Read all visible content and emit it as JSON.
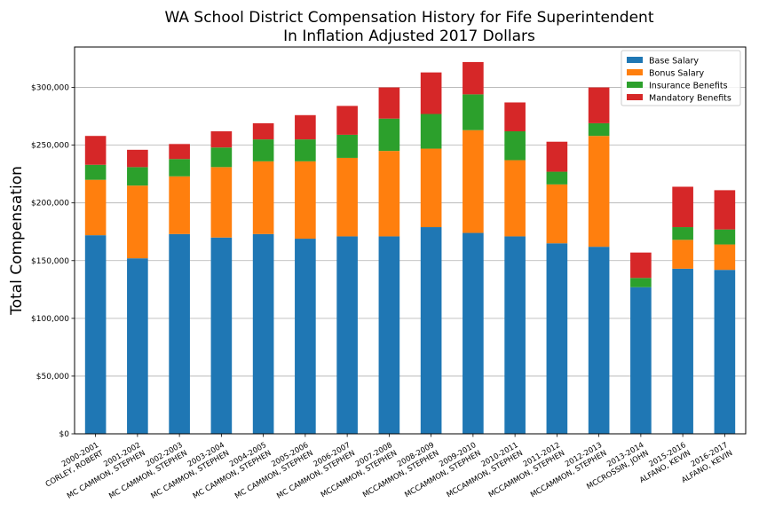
{
  "chart_data": {
    "type": "bar",
    "stacked": true,
    "title_line1": "WA School District Compensation History for Fife Superintendent",
    "title_line2": "In Inflation Adjusted 2017 Dollars",
    "xlabel": "",
    "ylabel": "Total Compensation",
    "ylim": [
      0,
      335000
    ],
    "yticks": [
      0,
      50000,
      100000,
      150000,
      200000,
      250000,
      300000
    ],
    "ytick_labels": [
      "$0",
      "$50,000",
      "$100,000",
      "$150,000",
      "$200,000",
      "$250,000",
      "$300,000"
    ],
    "grid": "horizontal",
    "legend_position": "top-right",
    "categories": [
      [
        "2000-2001",
        "CORLEY, ROBERT"
      ],
      [
        "2001-2002",
        "MC CAMMON, STEPHEN"
      ],
      [
        "2002-2003",
        "MC CAMMON, STEPHEN"
      ],
      [
        "2003-2004",
        "MC CAMMON, STEPHEN"
      ],
      [
        "2004-2005",
        "MC CAMMON, STEPHEN"
      ],
      [
        "2005-2006",
        "MC CAMMON, STEPHEN"
      ],
      [
        "2006-2007",
        "MC CAMMON, STEPHEN"
      ],
      [
        "2007-2008",
        "MCCAMMON, STEPHEN"
      ],
      [
        "2008-2009",
        "MCCAMMON, STEPHEN"
      ],
      [
        "2009-2010",
        "MCCAMMON, STEPHEN"
      ],
      [
        "2010-2011",
        "MCCAMMON, STEPHEN"
      ],
      [
        "2011-2012",
        "MCCAMMON, STEPHEN"
      ],
      [
        "2012-2013",
        "MCCAMMON, STEPHEN"
      ],
      [
        "2013-2014",
        "MCCROSSIN, JOHN"
      ],
      [
        "2015-2016",
        "ALFANO, KEVIN"
      ],
      [
        "2016-2017",
        "ALFANO, KEVIN"
      ]
    ],
    "series": [
      {
        "name": "Base Salary",
        "color": "#1f77b4",
        "values": [
          172000,
          152000,
          173000,
          170000,
          173000,
          169000,
          171000,
          171000,
          179000,
          174000,
          171000,
          165000,
          162000,
          127000,
          143000,
          142000
        ]
      },
      {
        "name": "Bonus Salary",
        "color": "#ff7f0e",
        "values": [
          48000,
          63000,
          50000,
          61000,
          63000,
          67000,
          68000,
          74000,
          68000,
          89000,
          66000,
          51000,
          96000,
          0,
          25000,
          22000
        ]
      },
      {
        "name": "Insurance Benefits",
        "color": "#2ca02c",
        "values": [
          13000,
          16000,
          15000,
          17000,
          19000,
          19000,
          20000,
          28000,
          30000,
          31000,
          25000,
          11000,
          11000,
          8000,
          11000,
          13000
        ]
      },
      {
        "name": "Mandatory Benefits",
        "color": "#d62728",
        "values": [
          25000,
          15000,
          13000,
          14000,
          14000,
          21000,
          25000,
          27000,
          36000,
          28000,
          25000,
          26000,
          31000,
          22000,
          35000,
          34000
        ]
      }
    ]
  }
}
